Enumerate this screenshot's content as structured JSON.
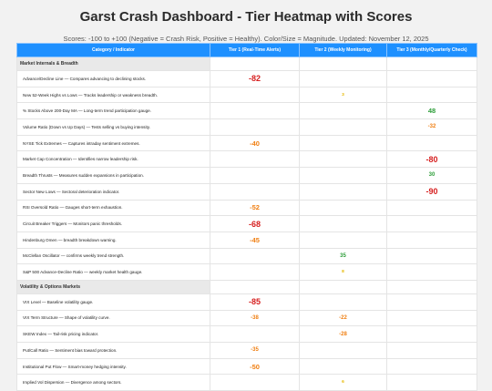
{
  "header": {
    "title": "Garst Crash Dashboard - Tier Heatmap with Scores",
    "subtitle": "Scores: -100 to +100 (Negative = Crash Risk, Positive = Healthy). Color/Size = Magnitude. Updated: November 12, 2025"
  },
  "colors": {
    "header_bg": "#1e90ff",
    "category_bg": "#e9e9e9",
    "severe_negative": "#d62020",
    "moderate_negative": "#f07f12",
    "mild": "#e6b800",
    "positive": "#2e9e3a"
  },
  "columns": [
    "Category / Indicator",
    "Tier 1 (Real-Time Alerts)",
    "Tier 2 (Weekly Monitoring)",
    "Tier 3 (Monthly/Quarterly Check)"
  ],
  "rows": [
    {
      "type": "category",
      "label": "Market Internals & Breadth"
    },
    {
      "type": "indicator",
      "label": "Advance/Decline Line — Compares advancing to declining stocks.",
      "tier": 1,
      "score": "-82",
      "color": "#d62020",
      "size": "lg"
    },
    {
      "type": "indicator",
      "label": "New 52-Week Highs vs Lows — Tracks leadership or weakness breadth.",
      "tier": 2,
      "score": "3",
      "color": "#e6b800",
      "size": "xs"
    },
    {
      "type": "indicator",
      "label": "% Stocks Above 200-Day MA — Long-term trend participation gauge.",
      "tier": 3,
      "score": "48",
      "color": "#2e9e3a",
      "size": "md"
    },
    {
      "type": "indicator",
      "label": "Volume Ratio (Down vs Up Days) — Tests selling vs buying intensity.",
      "tier": 3,
      "score": "-32",
      "color": "#f07f12",
      "size": "sm"
    },
    {
      "type": "indicator",
      "label": "NYSE Tick Extremes — Captures intraday sentiment extremes.",
      "tier": 1,
      "score": "-40",
      "color": "#f07f12",
      "size": "md"
    },
    {
      "type": "indicator",
      "label": "Market Cap Concentration — Identifies narrow leadership risk.",
      "tier": 3,
      "score": "-80",
      "color": "#d62020",
      "size": "lg"
    },
    {
      "type": "indicator",
      "label": "Breadth Thrusts — Measures sudden expansions in participation.",
      "tier": 3,
      "score": "30",
      "color": "#2e9e3a",
      "size": "sm"
    },
    {
      "type": "indicator",
      "label": "Sector New Lows — Sectoral deterioration indicator.",
      "tier": 3,
      "score": "-90",
      "color": "#d62020",
      "size": "lg"
    },
    {
      "type": "indicator",
      "label": "RSI Oversold Ratio — Gauges short-term exhaustion.",
      "tier": 1,
      "score": "-52",
      "color": "#f07f12",
      "size": "md"
    },
    {
      "type": "indicator",
      "label": "Circuit Breaker Triggers — Monitors panic thresholds.",
      "tier": 1,
      "score": "-68",
      "color": "#d62020",
      "size": "lg"
    },
    {
      "type": "indicator",
      "label": "Hindenburg Omen — breadth breakdown warning.",
      "tier": 1,
      "score": "-45",
      "color": "#f07f12",
      "size": "md"
    },
    {
      "type": "indicator",
      "label": "McClellan Oscillator — confirms weekly trend strength.",
      "tier": 2,
      "score": "35",
      "color": "#2e9e3a",
      "size": "sm"
    },
    {
      "type": "indicator",
      "label": "S&P 500 Advance-Decline Ratio — weekly market health gauge.",
      "tier": 2,
      "score": "8",
      "color": "#e6b800",
      "size": "xs"
    },
    {
      "type": "category",
      "label": "Volatility & Options Markets"
    },
    {
      "type": "indicator",
      "label": "VIX Level — Baseline volatility gauge.",
      "tier": 1,
      "score": "-85",
      "color": "#d62020",
      "size": "lg"
    },
    {
      "type": "indicator",
      "label": "VIX Term Structure — Shape of volatility curve.",
      "tier": 1,
      "score": "-38",
      "color": "#f07f12",
      "size": "sm",
      "tier2_score": "-22"
    },
    {
      "type": "indicator",
      "label": "SKEW Index — Tail-risk pricing indicator.",
      "tier": 2,
      "score": "-28",
      "color": "#f07f12",
      "size": "sm"
    },
    {
      "type": "indicator",
      "label": "Put/Call Ratio — Sentiment bias toward protection.",
      "tier": 1,
      "score": "-35",
      "color": "#f07f12",
      "size": "sm"
    },
    {
      "type": "indicator",
      "label": "Institutional Put Flow — Smart-money hedging intensity.",
      "tier": 1,
      "score": "-50",
      "color": "#f07f12",
      "size": "md"
    },
    {
      "type": "indicator",
      "label": "Implied Vol Dispersion — Divergence among sectors.",
      "tier": 2,
      "score": "6",
      "color": "#e6b800",
      "size": "xs"
    }
  ]
}
